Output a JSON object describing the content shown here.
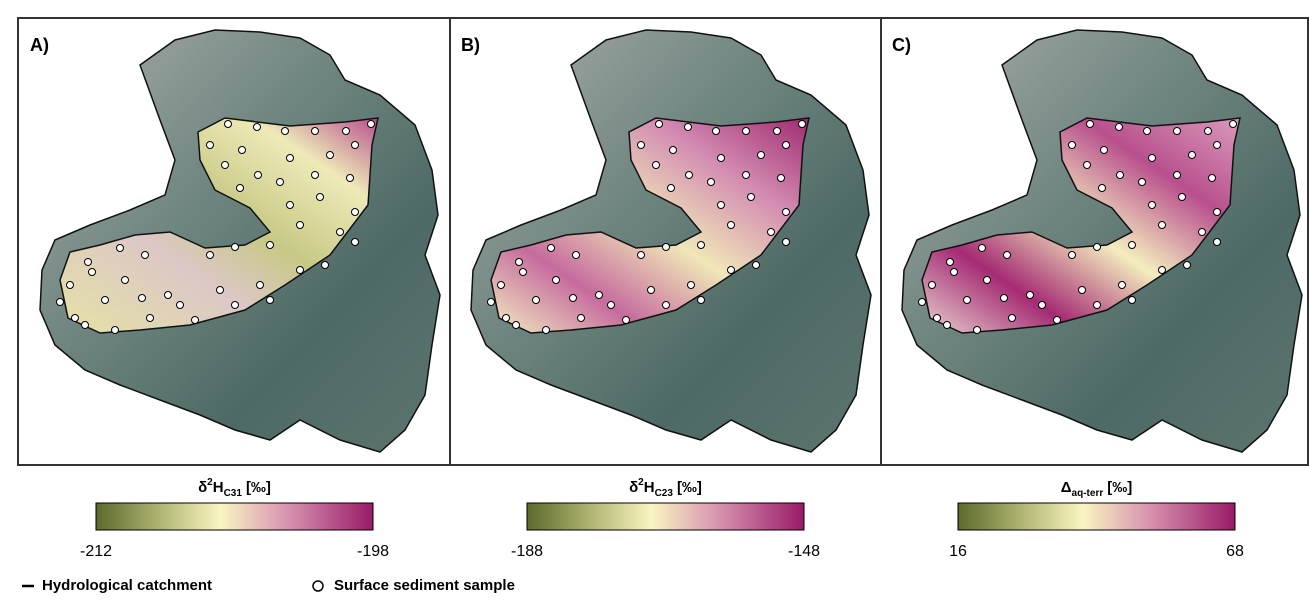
{
  "panels": [
    {
      "label": "A)",
      "colorbar": {
        "symbol": "δ",
        "sup": "2",
        "base": "H",
        "sub": "C31",
        "unit": "[‰]",
        "min": -212,
        "max": -198
      }
    },
    {
      "label": "B)",
      "colorbar": {
        "symbol": "δ",
        "sup": "2",
        "base": "H",
        "sub": "C23",
        "unit": "[‰]",
        "min": -188,
        "max": -148
      }
    },
    {
      "label": "C)",
      "colorbar": {
        "symbol": "Δ",
        "sub": "aq-terr",
        "unit": "[‰]",
        "min": 16,
        "max": 68
      }
    }
  ],
  "legend": {
    "items": [
      "Hydrological catchment",
      "Surface sediment sample"
    ]
  }
}
